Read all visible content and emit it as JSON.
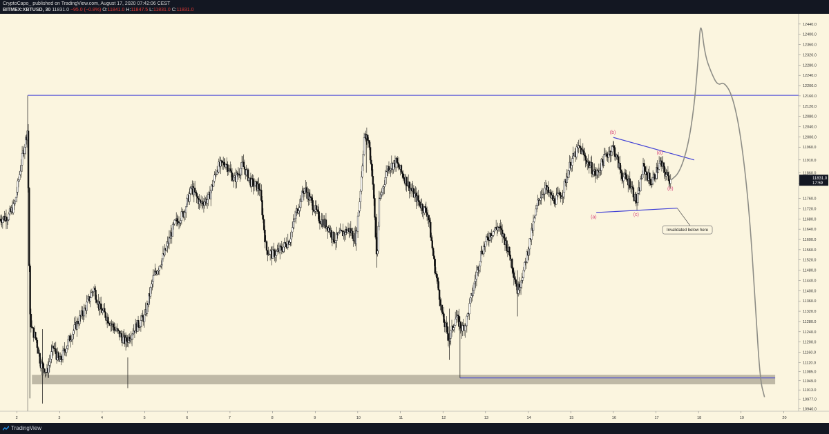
{
  "header": {
    "line1": "CryptoCapo_  published on TradingView.com, August 17, 2020 07:42:06 CEST",
    "symbol": "BITMEX:XBTUSD, 30",
    "last": "11831.0",
    "change": "−95.0 (−0.8%)",
    "open_label": "O:",
    "open": "11841.0",
    "high_label": "H:",
    "high": "11847.5",
    "low_label": "L:",
    "low": "11831.0",
    "close_label": "C:",
    "close": "11831.0"
  },
  "footer": {
    "brand": "TradingView"
  },
  "colors": {
    "background": "#fbf5df",
    "level_line": "#3f3fd6",
    "wave_label": "#d6457a",
    "projection": "#8d8d86",
    "zone": "#b8b3a0",
    "price_tag": "#131722"
  },
  "annotations": {
    "wave_labels": [
      "(a)",
      "(b)",
      "(c)",
      "(d)",
      "(e)"
    ],
    "callout": "Invalidated below here"
  },
  "chart_data": {
    "type": "candlestick",
    "symbol": "BITMEX:XBTUSD",
    "interval": "30",
    "x_ticks": [
      "2",
      "3",
      "4",
      "5",
      "6",
      "7",
      "8",
      "9",
      "10",
      "11",
      "12",
      "13",
      "14",
      "15",
      "16",
      "17",
      "18",
      "19",
      "20"
    ],
    "y_ticks": [
      "12440.0",
      "12400.0",
      "12360.0",
      "12320.0",
      "12280.0",
      "12240.0",
      "12200.0",
      "12160.0",
      "12120.0",
      "12080.0",
      "12040.0",
      "12000.0",
      "11960.0",
      "11910.0",
      "11860.0",
      "11820.0",
      "11760.0",
      "11720.0",
      "11680.0",
      "11640.0",
      "11600.0",
      "11560.0",
      "11520.0",
      "11480.0",
      "11440.0",
      "11400.0",
      "11360.0",
      "11320.0",
      "11280.0",
      "11240.0",
      "11200.0",
      "11160.0",
      "11120.0",
      "11085.0",
      "11049.0",
      "11013.0",
      "10977.0",
      "10940.0"
    ],
    "ylim": [
      10930,
      12480
    ],
    "xlim": [
      1.6,
      20.35
    ],
    "last_price": "11831.0",
    "countdown": "17:59",
    "path_points": [
      [
        1.6,
        11680
      ],
      [
        1.8,
        11690
      ],
      [
        1.95,
        11740
      ],
      [
        2.1,
        11900
      ],
      [
        2.25,
        12030
      ],
      [
        2.3,
        11300
      ],
      [
        2.35,
        11250
      ],
      [
        2.45,
        11210
      ],
      [
        2.55,
        11120
      ],
      [
        2.7,
        11080
      ],
      [
        2.85,
        11180
      ],
      [
        3.0,
        11120
      ],
      [
        3.2,
        11200
      ],
      [
        3.4,
        11270
      ],
      [
        3.6,
        11330
      ],
      [
        3.8,
        11410
      ],
      [
        3.95,
        11330
      ],
      [
        4.1,
        11300
      ],
      [
        4.3,
        11250
      ],
      [
        4.55,
        11200
      ],
      [
        4.75,
        11250
      ],
      [
        5.0,
        11300
      ],
      [
        5.2,
        11450
      ],
      [
        5.45,
        11540
      ],
      [
        5.7,
        11660
      ],
      [
        5.9,
        11700
      ],
      [
        6.1,
        11800
      ],
      [
        6.3,
        11740
      ],
      [
        6.5,
        11760
      ],
      [
        6.7,
        11880
      ],
      [
        6.9,
        11900
      ],
      [
        7.1,
        11830
      ],
      [
        7.3,
        11890
      ],
      [
        7.5,
        11820
      ],
      [
        7.7,
        11800
      ],
      [
        7.85,
        11560
      ],
      [
        8.0,
        11540
      ],
      [
        8.2,
        11560
      ],
      [
        8.4,
        11600
      ],
      [
        8.55,
        11700
      ],
      [
        8.75,
        11800
      ],
      [
        8.9,
        11750
      ],
      [
        9.1,
        11680
      ],
      [
        9.3,
        11650
      ],
      [
        9.45,
        11600
      ],
      [
        9.6,
        11620
      ],
      [
        9.8,
        11640
      ],
      [
        9.95,
        11600
      ],
      [
        10.05,
        11760
      ],
      [
        10.15,
        12000
      ],
      [
        10.25,
        11990
      ],
      [
        10.35,
        11840
      ],
      [
        10.45,
        11510
      ],
      [
        10.5,
        11740
      ],
      [
        10.7,
        11880
      ],
      [
        10.9,
        11900
      ],
      [
        11.1,
        11840
      ],
      [
        11.3,
        11780
      ],
      [
        11.5,
        11730
      ],
      [
        11.65,
        11700
      ],
      [
        11.8,
        11500
      ],
      [
        11.9,
        11400
      ],
      [
        12.0,
        11290
      ],
      [
        12.15,
        11210
      ],
      [
        12.3,
        11300
      ],
      [
        12.45,
        11250
      ],
      [
        12.55,
        11280
      ],
      [
        12.7,
        11400
      ],
      [
        12.9,
        11550
      ],
      [
        13.1,
        11620
      ],
      [
        13.3,
        11650
      ],
      [
        13.45,
        11600
      ],
      [
        13.6,
        11520
      ],
      [
        13.75,
        11400
      ],
      [
        13.9,
        11480
      ],
      [
        14.05,
        11600
      ],
      [
        14.25,
        11760
      ],
      [
        14.4,
        11800
      ],
      [
        14.6,
        11750
      ],
      [
        14.8,
        11780
      ],
      [
        15.0,
        11900
      ],
      [
        15.2,
        11960
      ],
      [
        15.4,
        11900
      ],
      [
        15.6,
        11850
      ],
      [
        15.8,
        11920
      ],
      [
        16.0,
        11960
      ],
      [
        16.2,
        11850
      ],
      [
        16.4,
        11820
      ],
      [
        16.55,
        11740
      ],
      [
        16.7,
        11880
      ],
      [
        16.9,
        11820
      ],
      [
        17.1,
        11900
      ],
      [
        17.25,
        11850
      ],
      [
        17.35,
        11831
      ]
    ],
    "levels": [
      {
        "price": 12162,
        "x_from": 2.25,
        "x_to": 20.35
      },
      {
        "price": 11060,
        "x_from": 12.4,
        "x_to": 19.8
      }
    ],
    "zone": {
      "from": 11035,
      "to": 11072,
      "x_from": 2.35,
      "x_to": 19.8
    },
    "triangle": {
      "upper": [
        [
          16.0,
          11998
        ],
        [
          17.9,
          11910
        ]
      ],
      "lower": [
        [
          15.6,
          11705
        ],
        [
          17.5,
          11722
        ]
      ]
    },
    "wave_points": [
      {
        "label": "(a)",
        "x": 15.55,
        "y": 11690
      },
      {
        "label": "(b)",
        "x": 16.0,
        "y": 12020
      },
      {
        "label": "(c)",
        "x": 16.55,
        "y": 11700
      },
      {
        "label": "(d)",
        "x": 17.1,
        "y": 11940
      },
      {
        "label": "(e)",
        "x": 17.35,
        "y": 11800
      }
    ],
    "projection": [
      [
        17.35,
        11831
      ],
      [
        17.55,
        11860
      ],
      [
        17.75,
        11960
      ],
      [
        17.9,
        12120
      ],
      [
        18.0,
        12320
      ],
      [
        18.05,
        12460
      ],
      [
        18.15,
        12320
      ],
      [
        18.3,
        12250
      ],
      [
        18.45,
        12200
      ],
      [
        18.6,
        12215
      ],
      [
        18.8,
        12160
      ],
      [
        19.0,
        12000
      ],
      [
        19.2,
        11700
      ],
      [
        19.35,
        11300
      ],
      [
        19.45,
        11050
      ],
      [
        19.55,
        10985
      ]
    ]
  }
}
